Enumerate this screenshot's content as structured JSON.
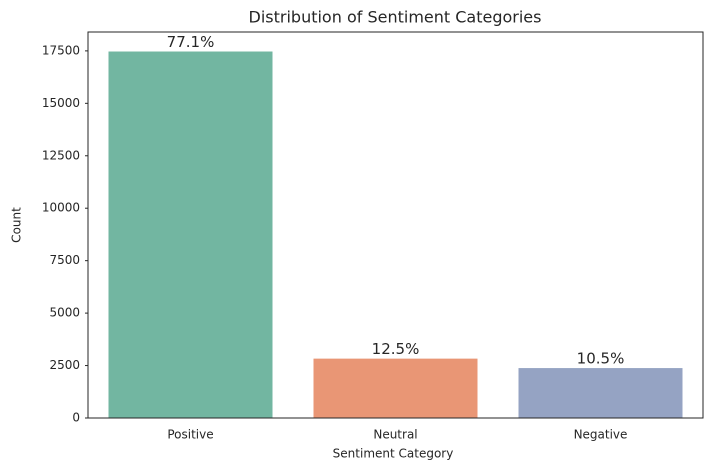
{
  "chart_data": {
    "type": "bar",
    "title": "Distribution of Sentiment Categories",
    "x_label": "Sentiment Category",
    "y_label": "Count",
    "categories": [
      "Positive",
      "Neutral",
      "Negative"
    ],
    "values": [
      17470,
      2830,
      2380
    ],
    "annotations": [
      "77.1%",
      "12.5%",
      "10.5%"
    ],
    "colors": [
      "#72b6a1",
      "#e99675",
      "#95a3c3"
    ],
    "ylim": [
      0,
      18400
    ],
    "yticks": [
      0,
      2500,
      5000,
      7500,
      10000,
      12500,
      15000,
      17500
    ],
    "grid": false
  }
}
